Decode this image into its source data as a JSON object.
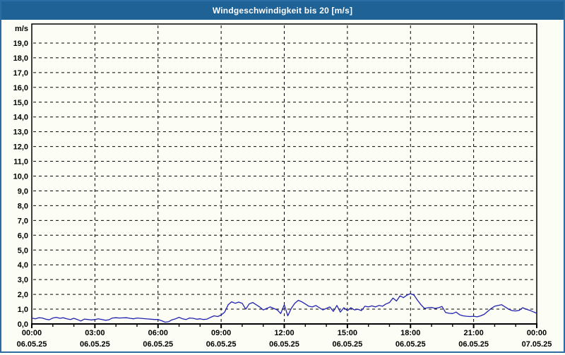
{
  "header": {
    "title": "Windgeschwindigkeit bis 20 [m/s]"
  },
  "colors": {
    "titlebar_bg": "#1e6296",
    "titlebar_text": "#ffffff",
    "window_border": "#2a6ca3",
    "page_bg": "#fcfdf5",
    "grid": "#000000",
    "axis_text": "#000000",
    "line": "#2222b0"
  },
  "chart_data": {
    "type": "line",
    "title": "Windgeschwindigkeit bis 20 [m/s]",
    "ylabel_unit": "m/s",
    "ylim": [
      0,
      20
    ],
    "y_tick_step": 1.0,
    "y_tick_labels": [
      "0,0",
      "1,0",
      "2,0",
      "3,0",
      "4,0",
      "5,0",
      "6,0",
      "7,0",
      "8,0",
      "9,0",
      "10,0",
      "11,0",
      "12,0",
      "13,0",
      "14,0",
      "15,0",
      "16,0",
      "17,0",
      "18,0",
      "19,0"
    ],
    "grid": "dashed",
    "legend": "none",
    "x_major_ticks": [
      {
        "time": "00:00",
        "date": "06.05.25"
      },
      {
        "time": "03:00",
        "date": "06.05.25"
      },
      {
        "time": "06:00",
        "date": "06.05.25"
      },
      {
        "time": "09:00",
        "date": "06.05.25"
      },
      {
        "time": "12:00",
        "date": "06.05.25"
      },
      {
        "time": "15:00",
        "date": "06.05.25"
      },
      {
        "time": "18:00",
        "date": "06.05.25"
      },
      {
        "time": "21:00",
        "date": "06.05.25"
      },
      {
        "time": "00:00",
        "date": "07.05.25"
      }
    ],
    "x_minor_tick_interval_hours": 1,
    "x_range_hours": 24,
    "sample_interval_minutes": 10,
    "series_name": "Windgeschwindigkeit",
    "values": [
      0.4,
      0.35,
      0.42,
      0.4,
      0.32,
      0.28,
      0.4,
      0.45,
      0.38,
      0.42,
      0.35,
      0.3,
      0.38,
      0.3,
      0.2,
      0.33,
      0.3,
      0.27,
      0.3,
      0.35,
      0.3,
      0.25,
      0.28,
      0.4,
      0.42,
      0.4,
      0.41,
      0.42,
      0.38,
      0.35,
      0.4,
      0.38,
      0.36,
      0.34,
      0.32,
      0.3,
      0.3,
      0.22,
      0.12,
      0.15,
      0.28,
      0.35,
      0.45,
      0.35,
      0.3,
      0.4,
      0.38,
      0.32,
      0.35,
      0.3,
      0.33,
      0.45,
      0.55,
      0.5,
      0.6,
      0.8,
      1.3,
      1.5,
      1.4,
      1.48,
      1.4,
      1.0,
      1.35,
      1.45,
      1.3,
      1.15,
      0.95,
      1.05,
      1.15,
      1.05,
      0.95,
      0.7,
      1.3,
      0.55,
      1.05,
      1.4,
      1.6,
      1.5,
      1.35,
      1.2,
      1.15,
      1.25,
      1.1,
      0.95,
      1.05,
      1.15,
      0.85,
      1.25,
      0.8,
      1.1,
      0.9,
      1.1,
      0.95,
      1.0,
      0.9,
      1.2,
      1.15,
      1.22,
      1.15,
      1.25,
      1.2,
      1.35,
      1.45,
      1.75,
      1.55,
      1.9,
      1.78,
      1.95,
      2.05,
      1.95,
      1.6,
      1.3,
      1.05,
      1.1,
      1.12,
      1.05,
      1.1,
      1.18,
      0.78,
      0.72,
      0.7,
      0.8,
      0.62,
      0.55,
      0.52,
      0.5,
      0.52,
      0.48,
      0.55,
      0.65,
      0.85,
      1.05,
      1.2,
      1.25,
      1.3,
      1.15,
      1.0,
      0.9,
      0.88,
      0.92,
      1.1,
      1.0,
      0.92,
      0.82,
      0.72
    ]
  }
}
